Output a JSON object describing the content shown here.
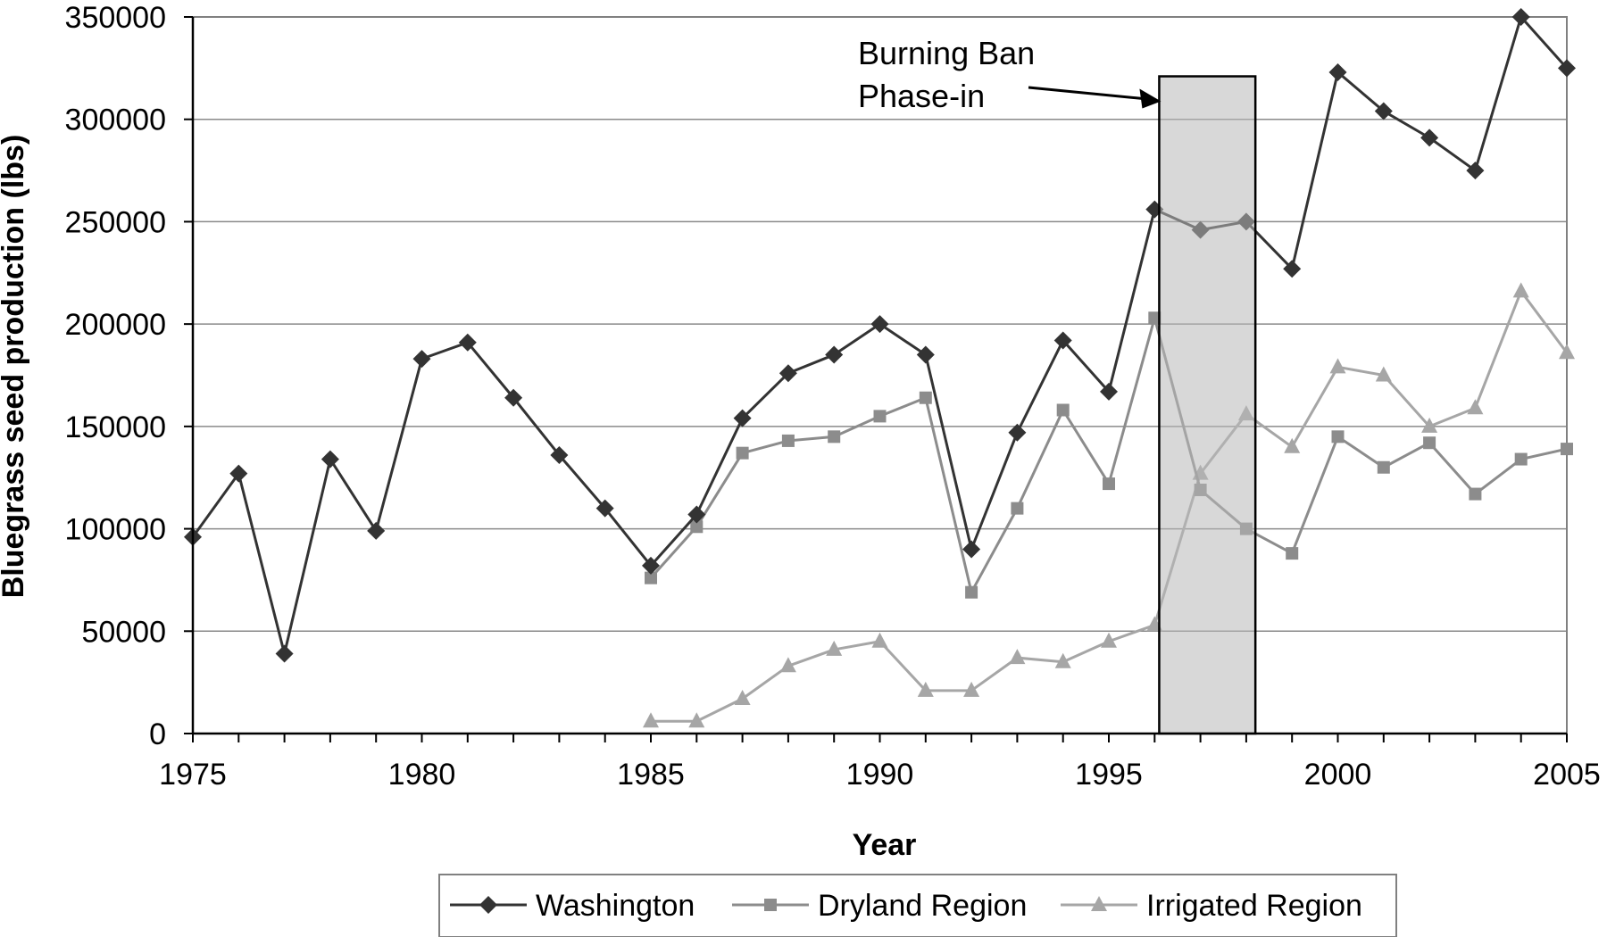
{
  "chart_data": {
    "type": "line",
    "title": "",
    "xlabel": "Year",
    "ylabel": "Bluegrass seed production (lbs)",
    "xlim": [
      1975,
      2005
    ],
    "ylim": [
      0,
      350000
    ],
    "x_ticks": [
      "1975",
      "1980",
      "1985",
      "1990",
      "1995",
      "2000",
      "2005"
    ],
    "y_ticks": [
      "0",
      "50000",
      "100000",
      "150000",
      "200000",
      "250000",
      "300000",
      "350000"
    ],
    "grid": "horizontal",
    "legend": "bottom",
    "annotation": {
      "text_lines": [
        "Burning Ban",
        "Phase-in"
      ],
      "shaded_x_range": [
        1996.1,
        1998.2
      ],
      "shaded_y_top": 321000
    },
    "series": [
      {
        "name": "Washington",
        "marker": "diamond",
        "color": "#333333",
        "x": [
          1975,
          1976,
          1977,
          1978,
          1979,
          1980,
          1981,
          1982,
          1983,
          1984,
          1985,
          1986,
          1987,
          1988,
          1989,
          1990,
          1991,
          1992,
          1993,
          1994,
          1995,
          1996,
          1997,
          1998,
          1999,
          2000,
          2001,
          2002,
          2003,
          2004,
          2005
        ],
        "values": [
          96000,
          127000,
          39000,
          134000,
          99000,
          183000,
          191000,
          164000,
          136000,
          110000,
          82000,
          107000,
          154000,
          176000,
          185000,
          200000,
          185000,
          90000,
          147000,
          192000,
          167000,
          256000,
          246000,
          250000,
          227000,
          323000,
          304000,
          291000,
          275000,
          350000,
          325000
        ]
      },
      {
        "name": "Dryland Region",
        "marker": "square",
        "color": "#8c8c8c",
        "x": [
          1985,
          1986,
          1987,
          1988,
          1989,
          1990,
          1991,
          1992,
          1993,
          1994,
          1995,
          1996,
          1997,
          1998,
          1999,
          2000,
          2001,
          2002,
          2003,
          2004,
          2005
        ],
        "values": [
          76000,
          101000,
          137000,
          143000,
          145000,
          155000,
          164000,
          69000,
          110000,
          158000,
          122000,
          203000,
          119000,
          100000,
          88000,
          145000,
          130000,
          142000,
          117000,
          134000,
          139000
        ]
      },
      {
        "name": "Irrigated Region",
        "marker": "triangle",
        "color": "#a6a6a6",
        "x": [
          1985,
          1986,
          1987,
          1988,
          1989,
          1990,
          1991,
          1992,
          1993,
          1994,
          1995,
          1996,
          1997,
          1998,
          1999,
          2000,
          2001,
          2002,
          2003,
          2004,
          2005
        ],
        "values": [
          6000,
          6000,
          17000,
          33000,
          41000,
          45000,
          21000,
          21000,
          37000,
          35000,
          45000,
          53000,
          127000,
          156000,
          140000,
          179000,
          175000,
          150000,
          159000,
          216000,
          186000
        ]
      }
    ]
  }
}
